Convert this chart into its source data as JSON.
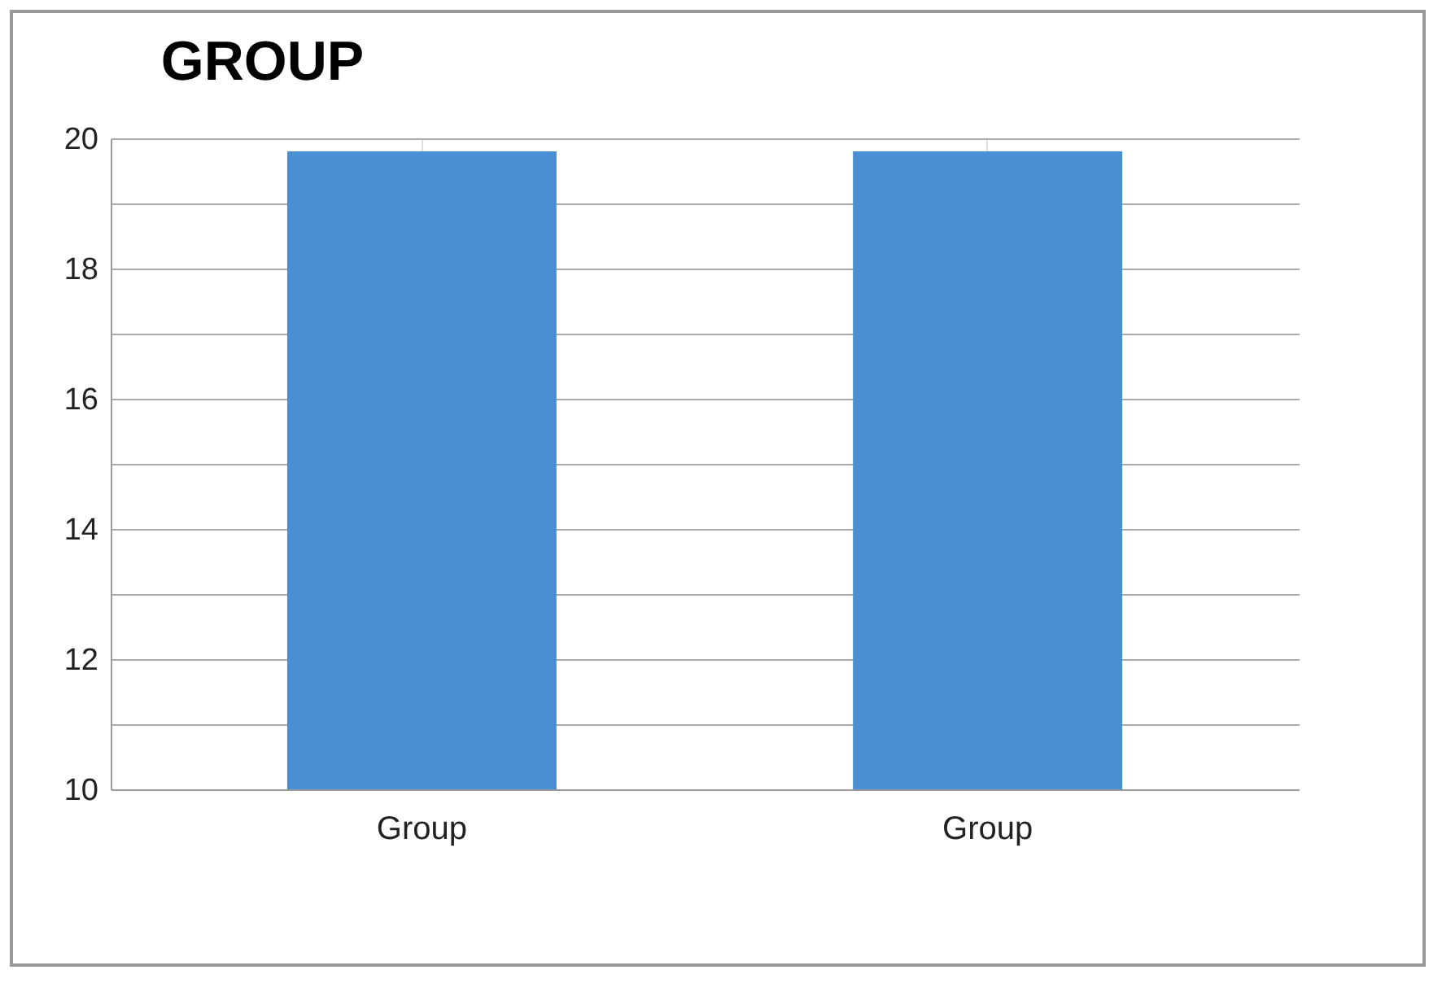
{
  "chart_data": {
    "type": "bar",
    "title": "GROUP",
    "categories": [
      "Group",
      "Group"
    ],
    "values": [
      19.8,
      19.8
    ],
    "color": "#4a8fd4",
    "ylim": [
      10,
      20
    ],
    "yticks": [
      10,
      {
        "value": 11,
        "label": null
      },
      12,
      {
        "value": 13,
        "label": null
      },
      14,
      {
        "value": 15,
        "label": null
      },
      16,
      {
        "value": 17,
        "label": null
      },
      18,
      {
        "value": 19,
        "label": null
      },
      20
    ],
    "grid": true
  }
}
